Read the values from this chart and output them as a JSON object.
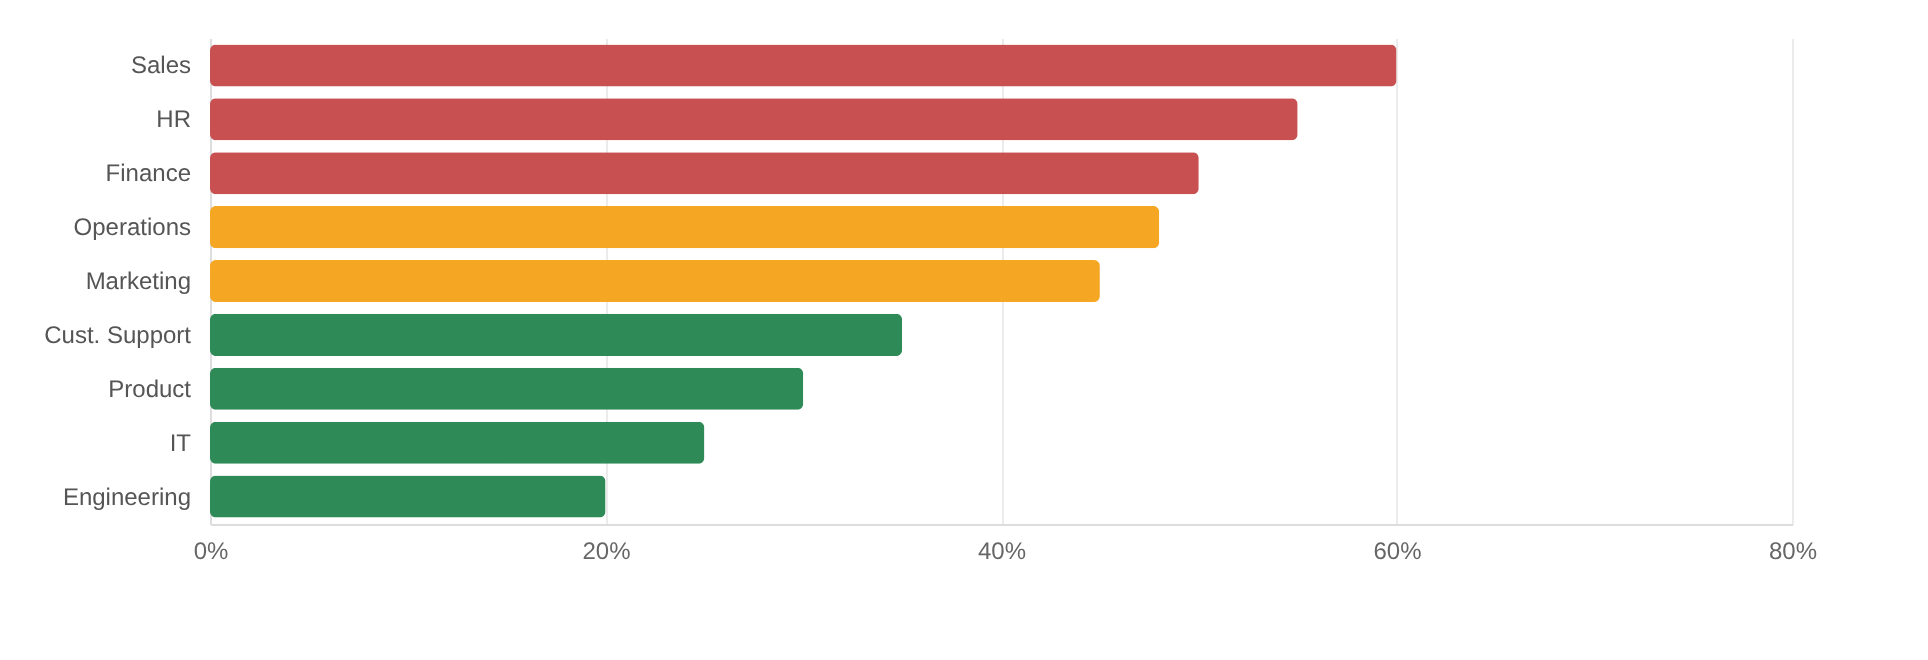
{
  "chart_data": {
    "type": "bar",
    "orientation": "horizontal",
    "categories": [
      "Sales",
      "HR",
      "Finance",
      "Operations",
      "Marketing",
      "Cust. Support",
      "Product",
      "IT",
      "Engineering"
    ],
    "values": [
      60,
      55,
      50,
      48,
      45,
      35,
      30,
      25,
      20
    ],
    "colors": [
      "#c85050",
      "#c85050",
      "#c85050",
      "#f5a623",
      "#f5a623",
      "#2e8b57",
      "#2e8b57",
      "#2e8b57",
      "#2e8b57"
    ],
    "xlim": [
      0,
      80
    ],
    "xticks": [
      {
        "value": 0,
        "label": "0%"
      },
      {
        "value": 20,
        "label": "20%"
      },
      {
        "value": 40,
        "label": "40%"
      },
      {
        "value": 60,
        "label": "60%"
      },
      {
        "value": 80,
        "label": "80%"
      }
    ],
    "grid": "x"
  }
}
